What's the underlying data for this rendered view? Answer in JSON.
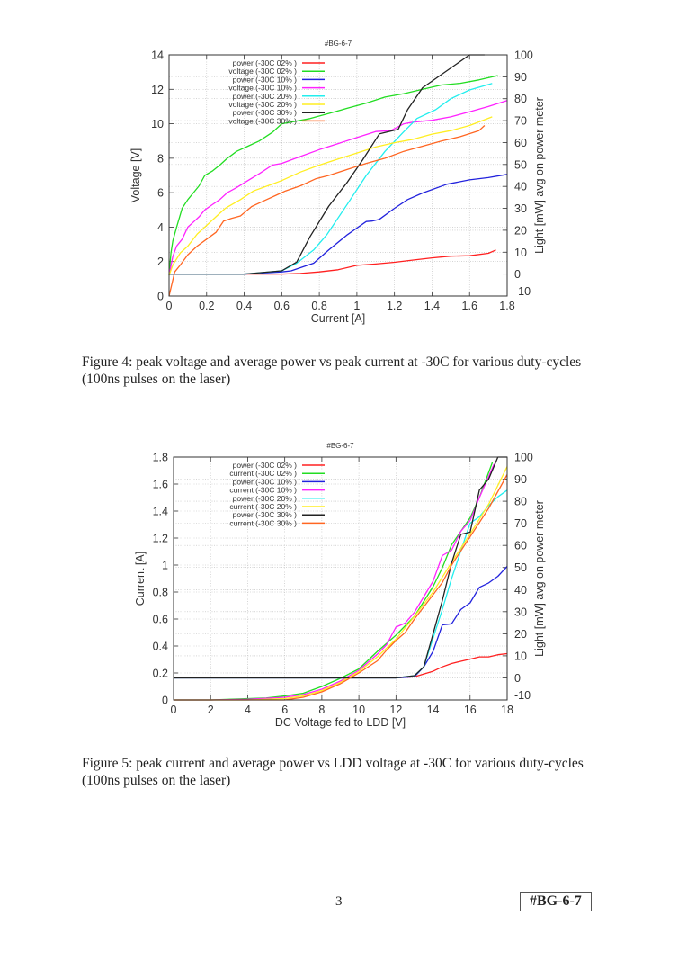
{
  "page": {
    "page_number": "3",
    "footer_id": "#BG-6-7"
  },
  "figures": [
    {
      "caption": "Figure 4: peak voltage and average power vs peak current at -30C for various duty-cycles (100ns pulses on the laser)"
    },
    {
      "caption": "Figure 5: peak current and average power vs LDD voltage at -30C for various duty-cycles (100ns pulses on the laser)"
    }
  ],
  "chart_data": [
    {
      "type": "line",
      "title": "#BG-6-7",
      "xlabel": "Current [A]",
      "ylabel": "Voltage [V]",
      "y2label": "Light [mW] avg on power meter",
      "xlim": [
        0,
        1.8
      ],
      "ylim": [
        0,
        14
      ],
      "y2lim": [
        -10,
        100
      ],
      "xticks": [
        "0",
        "0.2",
        "0.4",
        "0.6",
        "0.8",
        "1",
        "1.2",
        "1.4",
        "1.6",
        "1.8"
      ],
      "yticks": [
        "0",
        "2",
        "4",
        "6",
        "8",
        "10",
        "12",
        "14"
      ],
      "y2ticks": [
        "-10",
        "0",
        "10",
        "20",
        "30",
        "40",
        "50",
        "60",
        "70",
        "80",
        "90",
        "100"
      ],
      "grid": true,
      "legend": "top-left",
      "series": [
        {
          "name": "power (-30C 02% )",
          "axis": "y2",
          "color": "#ff2020",
          "x": [
            0,
            0.2,
            0.4,
            0.6,
            0.7,
            0.8,
            0.9,
            1.0,
            1.1,
            1.2,
            1.3,
            1.4,
            1.5,
            1.6,
            1.7,
            1.74
          ],
          "y": [
            0,
            0,
            0,
            0,
            0.3,
            1,
            2,
            4,
            4.6,
            5.4,
            6.4,
            7.4,
            8.2,
            8.4,
            9.5,
            11
          ]
        },
        {
          "name": "voltage (-30C 02% )",
          "axis": "y",
          "color": "#22dd22",
          "x": [
            0,
            0.01,
            0.02,
            0.04,
            0.07,
            0.1,
            0.13,
            0.16,
            0.19,
            0.23,
            0.27,
            0.31,
            0.36,
            0.42,
            0.48,
            0.55,
            0.6,
            0.65,
            0.75,
            0.85,
            0.95,
            1.05,
            1.15,
            1.25,
            1.35,
            1.45,
            1.55,
            1.65,
            1.75
          ],
          "y": [
            1.2,
            2.5,
            3.2,
            4.0,
            5.1,
            5.6,
            6.0,
            6.4,
            7.0,
            7.25,
            7.6,
            8.0,
            8.4,
            8.7,
            9.0,
            9.5,
            10.0,
            10.1,
            10.3,
            10.6,
            10.9,
            11.2,
            11.55,
            11.75,
            12.0,
            12.25,
            12.35,
            12.55,
            12.8
          ]
        },
        {
          "name": "power (-30C 10% )",
          "axis": "y2",
          "color": "#2222dd",
          "x": [
            0,
            0.2,
            0.4,
            0.6,
            0.65,
            0.77,
            0.85,
            0.95,
            1.05,
            1.08,
            1.12,
            1.2,
            1.27,
            1.35,
            1.48,
            1.6,
            1.7,
            1.8
          ],
          "y": [
            0,
            0,
            0,
            1,
            1.5,
            5,
            11,
            18,
            24,
            24.2,
            25,
            30,
            34,
            37,
            41,
            43,
            44,
            45.5
          ]
        },
        {
          "name": "voltage (-30C 10% )",
          "axis": "y",
          "color": "#ff22ff",
          "x": [
            0,
            0.02,
            0.04,
            0.07,
            0.1,
            0.13,
            0.16,
            0.19,
            0.23,
            0.27,
            0.31,
            0.36,
            0.42,
            0.48,
            0.55,
            0.6,
            0.7,
            0.8,
            0.9,
            1.0,
            1.1,
            1.18,
            1.25,
            1.3,
            1.4,
            1.5,
            1.6,
            1.7,
            1.8
          ],
          "y": [
            1.2,
            2.3,
            2.9,
            3.3,
            4.0,
            4.3,
            4.6,
            5.0,
            5.3,
            5.6,
            6.0,
            6.3,
            6.7,
            7.1,
            7.6,
            7.7,
            8.1,
            8.5,
            8.85,
            9.2,
            9.55,
            9.6,
            10.0,
            10.1,
            10.2,
            10.4,
            10.7,
            11.0,
            11.35
          ]
        },
        {
          "name": "power (-30C 20% )",
          "axis": "y2",
          "color": "#22eeee",
          "x": [
            0,
            0.2,
            0.4,
            0.6,
            0.68,
            0.77,
            0.84,
            0.95,
            1.05,
            1.15,
            1.25,
            1.32,
            1.42,
            1.5,
            1.6,
            1.72
          ],
          "y": [
            0,
            0,
            0,
            1.5,
            5,
            11,
            18,
            32,
            45,
            56,
            65,
            71,
            75,
            80,
            84,
            87
          ]
        },
        {
          "name": "voltage (-30C 20% )",
          "axis": "y",
          "color": "#ffee22",
          "x": [
            0,
            0.02,
            0.06,
            0.1,
            0.15,
            0.2,
            0.25,
            0.3,
            0.38,
            0.45,
            0.55,
            0.6,
            0.7,
            0.8,
            0.9,
            1.0,
            1.1,
            1.2,
            1.3,
            1.4,
            1.5,
            1.6,
            1.72
          ],
          "y": [
            1.2,
            1.8,
            2.5,
            2.9,
            3.6,
            4.1,
            4.6,
            5.1,
            5.6,
            6.1,
            6.5,
            6.7,
            7.2,
            7.6,
            7.95,
            8.3,
            8.65,
            8.9,
            9.1,
            9.4,
            9.6,
            9.9,
            10.4
          ]
        },
        {
          "name": "power (-30C 30% )",
          "axis": "y2",
          "color": "#222222",
          "x": [
            0,
            0.2,
            0.4,
            0.6,
            0.68,
            0.75,
            0.85,
            0.95,
            1.03,
            1.12,
            1.22,
            1.27,
            1.35,
            1.45,
            1.6,
            1.68
          ],
          "y": [
            0,
            0,
            0,
            1.5,
            5.5,
            17,
            31,
            42,
            52,
            64,
            66,
            75,
            85,
            91,
            100,
            100
          ]
        },
        {
          "name": "voltage (-30C 30% )",
          "axis": "y",
          "color": "#ff6622",
          "x": [
            0,
            0.03,
            0.06,
            0.1,
            0.15,
            0.2,
            0.25,
            0.29,
            0.33,
            0.38,
            0.44,
            0.5,
            0.57,
            0.62,
            0.7,
            0.78,
            0.85,
            0.95,
            1.05,
            1.15,
            1.25,
            1.35,
            1.45,
            1.55,
            1.65,
            1.68
          ],
          "y": [
            0,
            1.4,
            1.8,
            2.4,
            2.9,
            3.3,
            3.7,
            4.35,
            4.5,
            4.65,
            5.2,
            5.5,
            5.85,
            6.1,
            6.4,
            6.8,
            7.0,
            7.35,
            7.7,
            8.0,
            8.4,
            8.7,
            9.0,
            9.25,
            9.6,
            9.9
          ]
        }
      ]
    },
    {
      "type": "line",
      "title": "#BG-6-7",
      "xlabel": "DC Voltage fed to LDD [V]",
      "ylabel": "Current [A]",
      "y2label": "Light [mW] avg on power meter",
      "xlim": [
        0,
        18
      ],
      "ylim": [
        0,
        1.8
      ],
      "y2lim": [
        -10,
        100
      ],
      "xticks": [
        "0",
        "2",
        "4",
        "6",
        "8",
        "10",
        "12",
        "14",
        "16",
        "18"
      ],
      "yticks": [
        "0",
        "0.2",
        "0.4",
        "0.6",
        "0.8",
        "1",
        "1.2",
        "1.4",
        "1.6",
        "1.8"
      ],
      "y2ticks": [
        "-10",
        "0",
        "10",
        "20",
        "30",
        "40",
        "50",
        "60",
        "70",
        "80",
        "90",
        "100"
      ],
      "grid": true,
      "legend": "top-left",
      "series": [
        {
          "name": "power (-30C 02% )",
          "axis": "y2",
          "color": "#ff2020",
          "x": [
            0,
            2,
            4,
            6,
            8,
            10,
            12,
            13,
            14,
            14.5,
            15,
            15.5,
            16,
            16.5,
            17,
            17.5,
            18
          ],
          "y": [
            0,
            0,
            0,
            0,
            0,
            0,
            0,
            0.5,
            3,
            5,
            6.5,
            7.5,
            8.5,
            9.5,
            9.5,
            10.5,
            11
          ]
        },
        {
          "name": "current (-30C 02% )",
          "axis": "y",
          "color": "#22dd22",
          "x": [
            0,
            2,
            4,
            5,
            6,
            7,
            8,
            9,
            10,
            11,
            12,
            13,
            14,
            14.5,
            15,
            16,
            16.5,
            17.2
          ],
          "y": [
            0,
            0,
            0.01,
            0.015,
            0.03,
            0.05,
            0.1,
            0.16,
            0.23,
            0.36,
            0.48,
            0.62,
            0.84,
            0.98,
            1.15,
            1.35,
            1.5,
            1.76
          ]
        },
        {
          "name": "power (-30C 10% )",
          "axis": "y2",
          "color": "#2222dd",
          "x": [
            0,
            2,
            4,
            6,
            8,
            10,
            12,
            13,
            13.5,
            14,
            14.5,
            15,
            15.5,
            16,
            16.5,
            17,
            17.5,
            18
          ],
          "y": [
            0,
            0,
            0,
            0,
            0,
            0,
            0,
            0.5,
            5,
            12,
            24,
            24.5,
            31,
            34,
            41,
            43,
            46,
            50.5
          ]
        },
        {
          "name": "current (-30C 10% )",
          "axis": "y",
          "color": "#ff22ff",
          "x": [
            0,
            2,
            4,
            6,
            7,
            8,
            9,
            10,
            11,
            11.5,
            12,
            12.5,
            13,
            14,
            14.5,
            15,
            15.5,
            16,
            16.5,
            17.3
          ],
          "y": [
            0,
            0,
            0.005,
            0.02,
            0.04,
            0.08,
            0.14,
            0.22,
            0.34,
            0.41,
            0.54,
            0.57,
            0.65,
            0.88,
            1.07,
            1.11,
            1.25,
            1.33,
            1.5,
            1.75
          ]
        },
        {
          "name": "power (-30C 20% )",
          "axis": "y2",
          "color": "#22eeee",
          "x": [
            0,
            2,
            4,
            6,
            8,
            10,
            12,
            13,
            13.5,
            14,
            14.5,
            15,
            16,
            16.5,
            17,
            17.5,
            18
          ],
          "y": [
            0,
            0,
            0,
            0,
            0,
            0,
            0,
            1,
            5,
            18,
            31,
            45,
            70,
            73,
            78,
            82,
            85
          ]
        },
        {
          "name": "current (-30C 20% )",
          "axis": "y",
          "color": "#ffee22",
          "x": [
            0,
            2,
            4,
            6,
            7,
            8,
            9,
            10,
            11,
            12,
            13,
            14,
            15,
            16,
            17,
            18
          ],
          "y": [
            0,
            0,
            0,
            0.01,
            0.03,
            0.07,
            0.13,
            0.21,
            0.32,
            0.45,
            0.62,
            0.8,
            1.02,
            1.23,
            1.45,
            1.73
          ]
        },
        {
          "name": "power (-30C 30% )",
          "axis": "y2",
          "color": "#222222",
          "x": [
            0,
            2,
            4,
            6,
            8,
            10,
            12,
            13,
            13.5,
            14,
            14.5,
            15,
            15.5,
            16,
            16.5,
            17,
            17.5,
            18
          ],
          "y": [
            0,
            0,
            0,
            0,
            0,
            0,
            0,
            1,
            5,
            20,
            35,
            52,
            65,
            66,
            85,
            90,
            100,
            100
          ]
        },
        {
          "name": "current (-30C 30% )",
          "axis": "y",
          "color": "#ff6622",
          "x": [
            0,
            2,
            4,
            6,
            7,
            8,
            9,
            10,
            11,
            11.5,
            12,
            12.5,
            13,
            14,
            14.5,
            15,
            16,
            17,
            18
          ],
          "y": [
            0,
            0,
            0,
            0,
            0.02,
            0.06,
            0.12,
            0.2,
            0.29,
            0.37,
            0.44,
            0.5,
            0.6,
            0.78,
            0.87,
            1.0,
            1.21,
            1.42,
            1.67
          ]
        }
      ]
    }
  ]
}
